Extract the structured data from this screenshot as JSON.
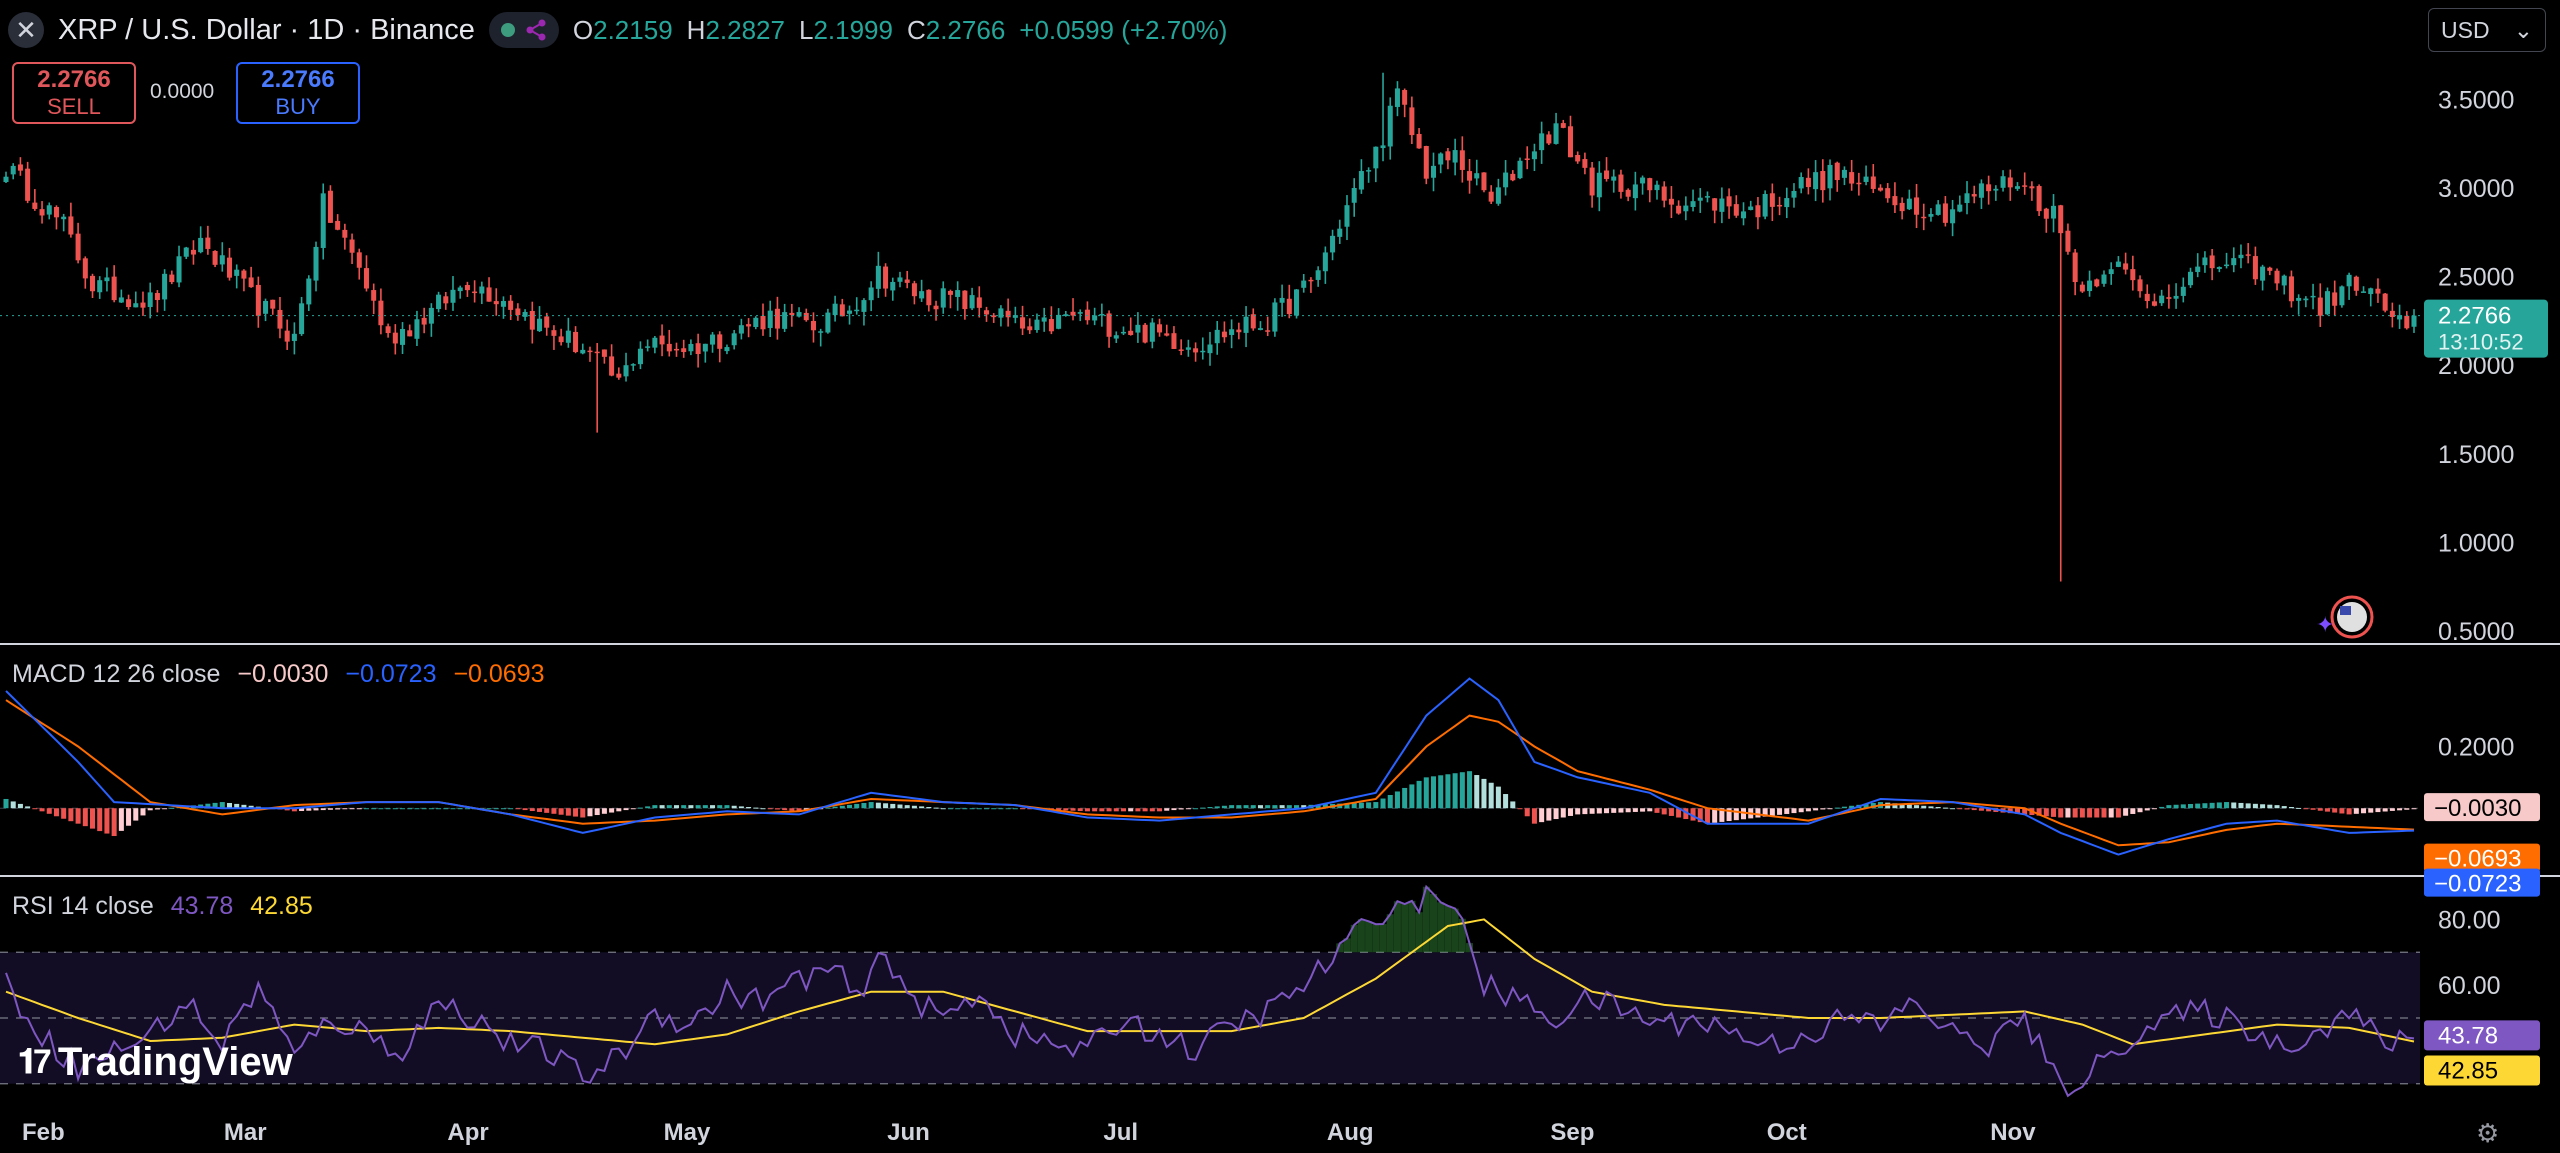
{
  "header": {
    "close_icon": "x-icon",
    "title": "XRP / U.S. Dollar · 1D · Binance",
    "status_icon": "market-open-dot",
    "share_icon": "share-icon",
    "ohlc": [
      {
        "k": "O",
        "v": "2.2159"
      },
      {
        "k": "H",
        "v": "2.2827"
      },
      {
        "k": "L",
        "v": "2.1999"
      },
      {
        "k": "C",
        "v": "2.2766"
      }
    ],
    "change": "+0.0599 (+2.70%)"
  },
  "trade": {
    "sell_price": "2.2766",
    "sell_label": "SELL",
    "spread": "0.0000",
    "buy_price": "2.2766",
    "buy_label": "BUY"
  },
  "currency": {
    "label": "USD",
    "chevron": "chevron-down-icon"
  },
  "macd_panel": {
    "label": "MACD 12 26 close",
    "hist": "−0.0030",
    "macd": "−0.0723",
    "signal": "−0.0693"
  },
  "rsi_panel": {
    "label": "RSI 14 close",
    "rsi": "43.78",
    "ma": "42.85"
  },
  "logo": "TradingView",
  "colors": {
    "up": "#26a69a",
    "down": "#ef5350",
    "macd": "#2962ff",
    "signal": "#ff6d00",
    "rsi": "#7e57c2",
    "rsi_ma": "#fdd835",
    "background": "#000000"
  },
  "chart_data": [
    {
      "type": "candlestick",
      "title": "XRP / U.S. Dollar · 1D · Binance",
      "x_tick_labels": [
        "Feb",
        "Mar",
        "Apr",
        "May",
        "Jun",
        "Jul",
        "Aug",
        "Sep",
        "Oct",
        "Nov"
      ],
      "y_tick_labels": [
        "3.5000",
        "3.0000",
        "2.5000",
        "2.0000",
        "1.5000",
        "1.0000",
        "0.5000"
      ],
      "ylim": [
        0.45,
        3.75
      ],
      "last_price": "2.2766",
      "countdown": "13:10:52",
      "close_anchors": [
        [
          0,
          3.12
        ],
        [
          8,
          2.78
        ],
        [
          12,
          2.45
        ],
        [
          20,
          2.36
        ],
        [
          27,
          2.7
        ],
        [
          34,
          2.38
        ],
        [
          40,
          2.15
        ],
        [
          44,
          2.9
        ],
        [
          49,
          2.55
        ],
        [
          53,
          2.15
        ],
        [
          59,
          2.3
        ],
        [
          64,
          2.48
        ],
        [
          70,
          2.35
        ],
        [
          75,
          2.2
        ],
        [
          80,
          2.1
        ],
        [
          85,
          1.9
        ],
        [
          88,
          2.12
        ],
        [
          95,
          2.1
        ],
        [
          100,
          2.17
        ],
        [
          106,
          2.28
        ],
        [
          112,
          2.22
        ],
        [
          117,
          2.32
        ],
        [
          121,
          2.52
        ],
        [
          127,
          2.39
        ],
        [
          132,
          2.37
        ],
        [
          137,
          2.3
        ],
        [
          142,
          2.18
        ],
        [
          148,
          2.28
        ],
        [
          154,
          2.22
        ],
        [
          159,
          2.18
        ],
        [
          165,
          2.12
        ],
        [
          170,
          2.2
        ],
        [
          175,
          2.25
        ],
        [
          181,
          2.46
        ],
        [
          187,
          2.98
        ],
        [
          190,
          3.2
        ],
        [
          193,
          3.52
        ],
        [
          197,
          3.1
        ],
        [
          201,
          3.18
        ],
        [
          206,
          2.92
        ],
        [
          211,
          3.2
        ],
        [
          215,
          3.35
        ],
        [
          220,
          3.02
        ],
        [
          226,
          3.02
        ],
        [
          232,
          2.92
        ],
        [
          237,
          2.92
        ],
        [
          242,
          2.87
        ],
        [
          248,
          3.0
        ],
        [
          254,
          3.08
        ],
        [
          259,
          2.98
        ],
        [
          264,
          2.92
        ],
        [
          269,
          2.87
        ],
        [
          274,
          2.98
        ],
        [
          279,
          3.05
        ],
        [
          284,
          2.85
        ],
        [
          288,
          2.42
        ],
        [
          292,
          2.6
        ],
        [
          297,
          2.35
        ],
        [
          302,
          2.48
        ],
        [
          307,
          2.58
        ],
        [
          312,
          2.55
        ],
        [
          316,
          2.45
        ],
        [
          321,
          2.33
        ],
        [
          326,
          2.48
        ],
        [
          331,
          2.28
        ],
        [
          333,
          2.2
        ],
        [
          334,
          2.28
        ]
      ],
      "candles_count": 335,
      "wick_extremes": [
        {
          "index": 191,
          "high": 3.65
        },
        {
          "index": 285,
          "low": 0.78
        },
        {
          "index": 82,
          "low": 1.62
        }
      ]
    },
    {
      "type": "macd",
      "name": "MACD 12 26 close",
      "y_tick_labels": [
        "0.2000"
      ],
      "last_values": {
        "histogram": -0.003,
        "macd": -0.0723,
        "signal": -0.0693
      },
      "macd_anchors": [
        [
          0,
          0.38
        ],
        [
          10,
          0.15
        ],
        [
          15,
          0.02
        ],
        [
          30,
          0.0
        ],
        [
          40,
          0.0
        ],
        [
          50,
          0.02
        ],
        [
          60,
          0.02
        ],
        [
          70,
          -0.02
        ],
        [
          80,
          -0.08
        ],
        [
          90,
          -0.03
        ],
        [
          100,
          -0.01
        ],
        [
          110,
          -0.02
        ],
        [
          120,
          0.05
        ],
        [
          130,
          0.02
        ],
        [
          140,
          0.01
        ],
        [
          150,
          -0.03
        ],
        [
          160,
          -0.04
        ],
        [
          170,
          -0.02
        ],
        [
          180,
          0.0
        ],
        [
          190,
          0.05
        ],
        [
          197,
          0.3
        ],
        [
          203,
          0.42
        ],
        [
          207,
          0.35
        ],
        [
          212,
          0.15
        ],
        [
          218,
          0.1
        ],
        [
          228,
          0.05
        ],
        [
          236,
          -0.05
        ],
        [
          250,
          -0.05
        ],
        [
          260,
          0.03
        ],
        [
          270,
          0.02
        ],
        [
          280,
          -0.02
        ],
        [
          285,
          -0.08
        ],
        [
          293,
          -0.15
        ],
        [
          300,
          -0.1
        ],
        [
          308,
          -0.05
        ],
        [
          315,
          -0.04
        ],
        [
          325,
          -0.08
        ],
        [
          334,
          -0.0723
        ]
      ],
      "signal_anchors": [
        [
          0,
          0.35
        ],
        [
          10,
          0.2
        ],
        [
          20,
          0.02
        ],
        [
          30,
          -0.02
        ],
        [
          40,
          0.01
        ],
        [
          50,
          0.02
        ],
        [
          60,
          0.02
        ],
        [
          70,
          -0.02
        ],
        [
          80,
          -0.05
        ],
        [
          90,
          -0.04
        ],
        [
          100,
          -0.02
        ],
        [
          110,
          -0.01
        ],
        [
          120,
          0.03
        ],
        [
          130,
          0.02
        ],
        [
          140,
          0.01
        ],
        [
          150,
          -0.02
        ],
        [
          160,
          -0.03
        ],
        [
          170,
          -0.03
        ],
        [
          180,
          -0.01
        ],
        [
          190,
          0.03
        ],
        [
          197,
          0.2
        ],
        [
          203,
          0.3
        ],
        [
          207,
          0.28
        ],
        [
          212,
          0.2
        ],
        [
          218,
          0.12
        ],
        [
          228,
          0.06
        ],
        [
          236,
          0.0
        ],
        [
          250,
          -0.04
        ],
        [
          260,
          0.01
        ],
        [
          270,
          0.02
        ],
        [
          280,
          0.0
        ],
        [
          285,
          -0.05
        ],
        [
          293,
          -0.12
        ],
        [
          300,
          -0.11
        ],
        [
          308,
          -0.07
        ],
        [
          315,
          -0.05
        ],
        [
          325,
          -0.06
        ],
        [
          334,
          -0.0693
        ]
      ]
    },
    {
      "type": "rsi",
      "name": "RSI 14 close",
      "y_tick_labels": [
        "80.00",
        "60.00"
      ],
      "bands": [
        70,
        50,
        30
      ],
      "last_values": {
        "rsi": 43.78,
        "ma": 42.85
      },
      "rsi_anchors": [
        [
          0,
          60
        ],
        [
          5,
          45
        ],
        [
          10,
          35
        ],
        [
          15,
          40
        ],
        [
          20,
          45
        ],
        [
          25,
          55
        ],
        [
          30,
          42
        ],
        [
          35,
          60
        ],
        [
          40,
          38
        ],
        [
          45,
          50
        ],
        [
          50,
          45
        ],
        [
          55,
          40
        ],
        [
          60,
          55
        ],
        [
          65,
          50
        ],
        [
          70,
          42
        ],
        [
          75,
          40
        ],
        [
          80,
          32
        ],
        [
          85,
          38
        ],
        [
          90,
          52
        ],
        [
          95,
          48
        ],
        [
          100,
          58
        ],
        [
          105,
          55
        ],
        [
          110,
          62
        ],
        [
          115,
          65
        ],
        [
          118,
          55
        ],
        [
          122,
          70
        ],
        [
          126,
          55
        ],
        [
          130,
          50
        ],
        [
          135,
          58
        ],
        [
          140,
          45
        ],
        [
          145,
          42
        ],
        [
          150,
          40
        ],
        [
          155,
          50
        ],
        [
          160,
          45
        ],
        [
          165,
          40
        ],
        [
          170,
          48
        ],
        [
          175,
          52
        ],
        [
          180,
          60
        ],
        [
          185,
          70
        ],
        [
          190,
          82
        ],
        [
          195,
          85
        ],
        [
          200,
          88
        ],
        [
          205,
          60
        ],
        [
          210,
          55
        ],
        [
          215,
          50
        ],
        [
          220,
          56
        ],
        [
          225,
          52
        ],
        [
          230,
          48
        ],
        [
          235,
          50
        ],
        [
          240,
          45
        ],
        [
          245,
          42
        ],
        [
          250,
          45
        ],
        [
          255,
          50
        ],
        [
          260,
          48
        ],
        [
          265,
          55
        ],
        [
          270,
          45
        ],
        [
          275,
          42
        ],
        [
          280,
          50
        ],
        [
          285,
          28
        ],
        [
          290,
          35
        ],
        [
          295,
          45
        ],
        [
          300,
          50
        ],
        [
          305,
          52
        ],
        [
          310,
          48
        ],
        [
          315,
          42
        ],
        [
          320,
          45
        ],
        [
          325,
          52
        ],
        [
          330,
          42
        ],
        [
          334,
          43.78
        ]
      ],
      "ma_anchors": [
        [
          0,
          58
        ],
        [
          10,
          50
        ],
        [
          20,
          43
        ],
        [
          30,
          44
        ],
        [
          40,
          48
        ],
        [
          50,
          46
        ],
        [
          60,
          47
        ],
        [
          70,
          46
        ],
        [
          80,
          44
        ],
        [
          90,
          42
        ],
        [
          100,
          45
        ],
        [
          110,
          52
        ],
        [
          120,
          58
        ],
        [
          130,
          58
        ],
        [
          140,
          52
        ],
        [
          150,
          46
        ],
        [
          160,
          46
        ],
        [
          170,
          46
        ],
        [
          180,
          50
        ],
        [
          190,
          62
        ],
        [
          200,
          78
        ],
        [
          205,
          80
        ],
        [
          212,
          68
        ],
        [
          220,
          58
        ],
        [
          230,
          54
        ],
        [
          240,
          52
        ],
        [
          250,
          50
        ],
        [
          260,
          50
        ],
        [
          270,
          51
        ],
        [
          280,
          52
        ],
        [
          288,
          48
        ],
        [
          295,
          42
        ],
        [
          305,
          45
        ],
        [
          315,
          48
        ],
        [
          325,
          47
        ],
        [
          334,
          42.85
        ]
      ]
    }
  ]
}
